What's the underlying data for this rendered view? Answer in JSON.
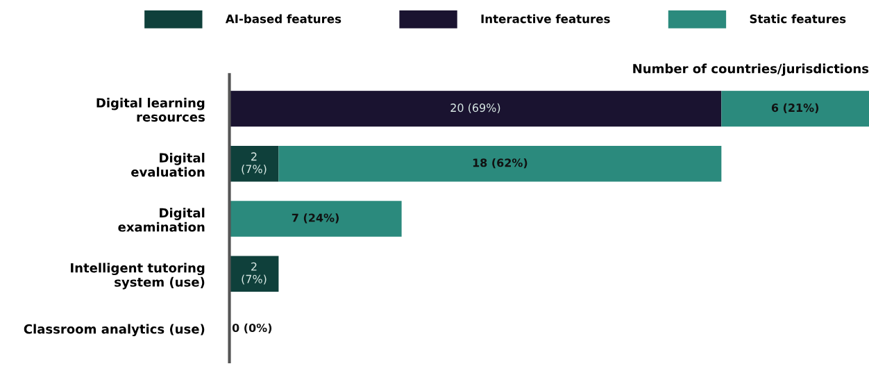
{
  "chart_data": {
    "type": "bar",
    "orientation": "horizontal",
    "stacked": true,
    "xlabel": "Number of countries/jurisdictions",
    "categories": [
      "Digital learning\nresources",
      "Digital\nevaluation",
      "Digital\nexamination",
      "Intelligent tutoring\nsystem (use)",
      "Classroom analytics (use)"
    ],
    "series": [
      {
        "name": "AI-based features",
        "color": "#0f403b",
        "values": [
          0,
          2,
          0,
          2,
          0
        ],
        "value_labels": [
          null,
          "2\n(7%)",
          null,
          "2\n(7%)",
          null
        ]
      },
      {
        "name": "Interactive features",
        "color": "#1a1330",
        "values": [
          20,
          0,
          0,
          0,
          0
        ],
        "value_labels": [
          "20 (69%)",
          null,
          null,
          null,
          null
        ]
      },
      {
        "name": "Static features",
        "color": "#2b8a7d",
        "values": [
          6,
          18,
          7,
          0,
          0
        ],
        "value_labels": [
          "6 (21%)",
          "18 (62%)",
          "7 (24%)",
          null,
          "0 (0%)"
        ]
      }
    ],
    "legend": "top",
    "grid": false,
    "tick_labels": "y"
  }
}
